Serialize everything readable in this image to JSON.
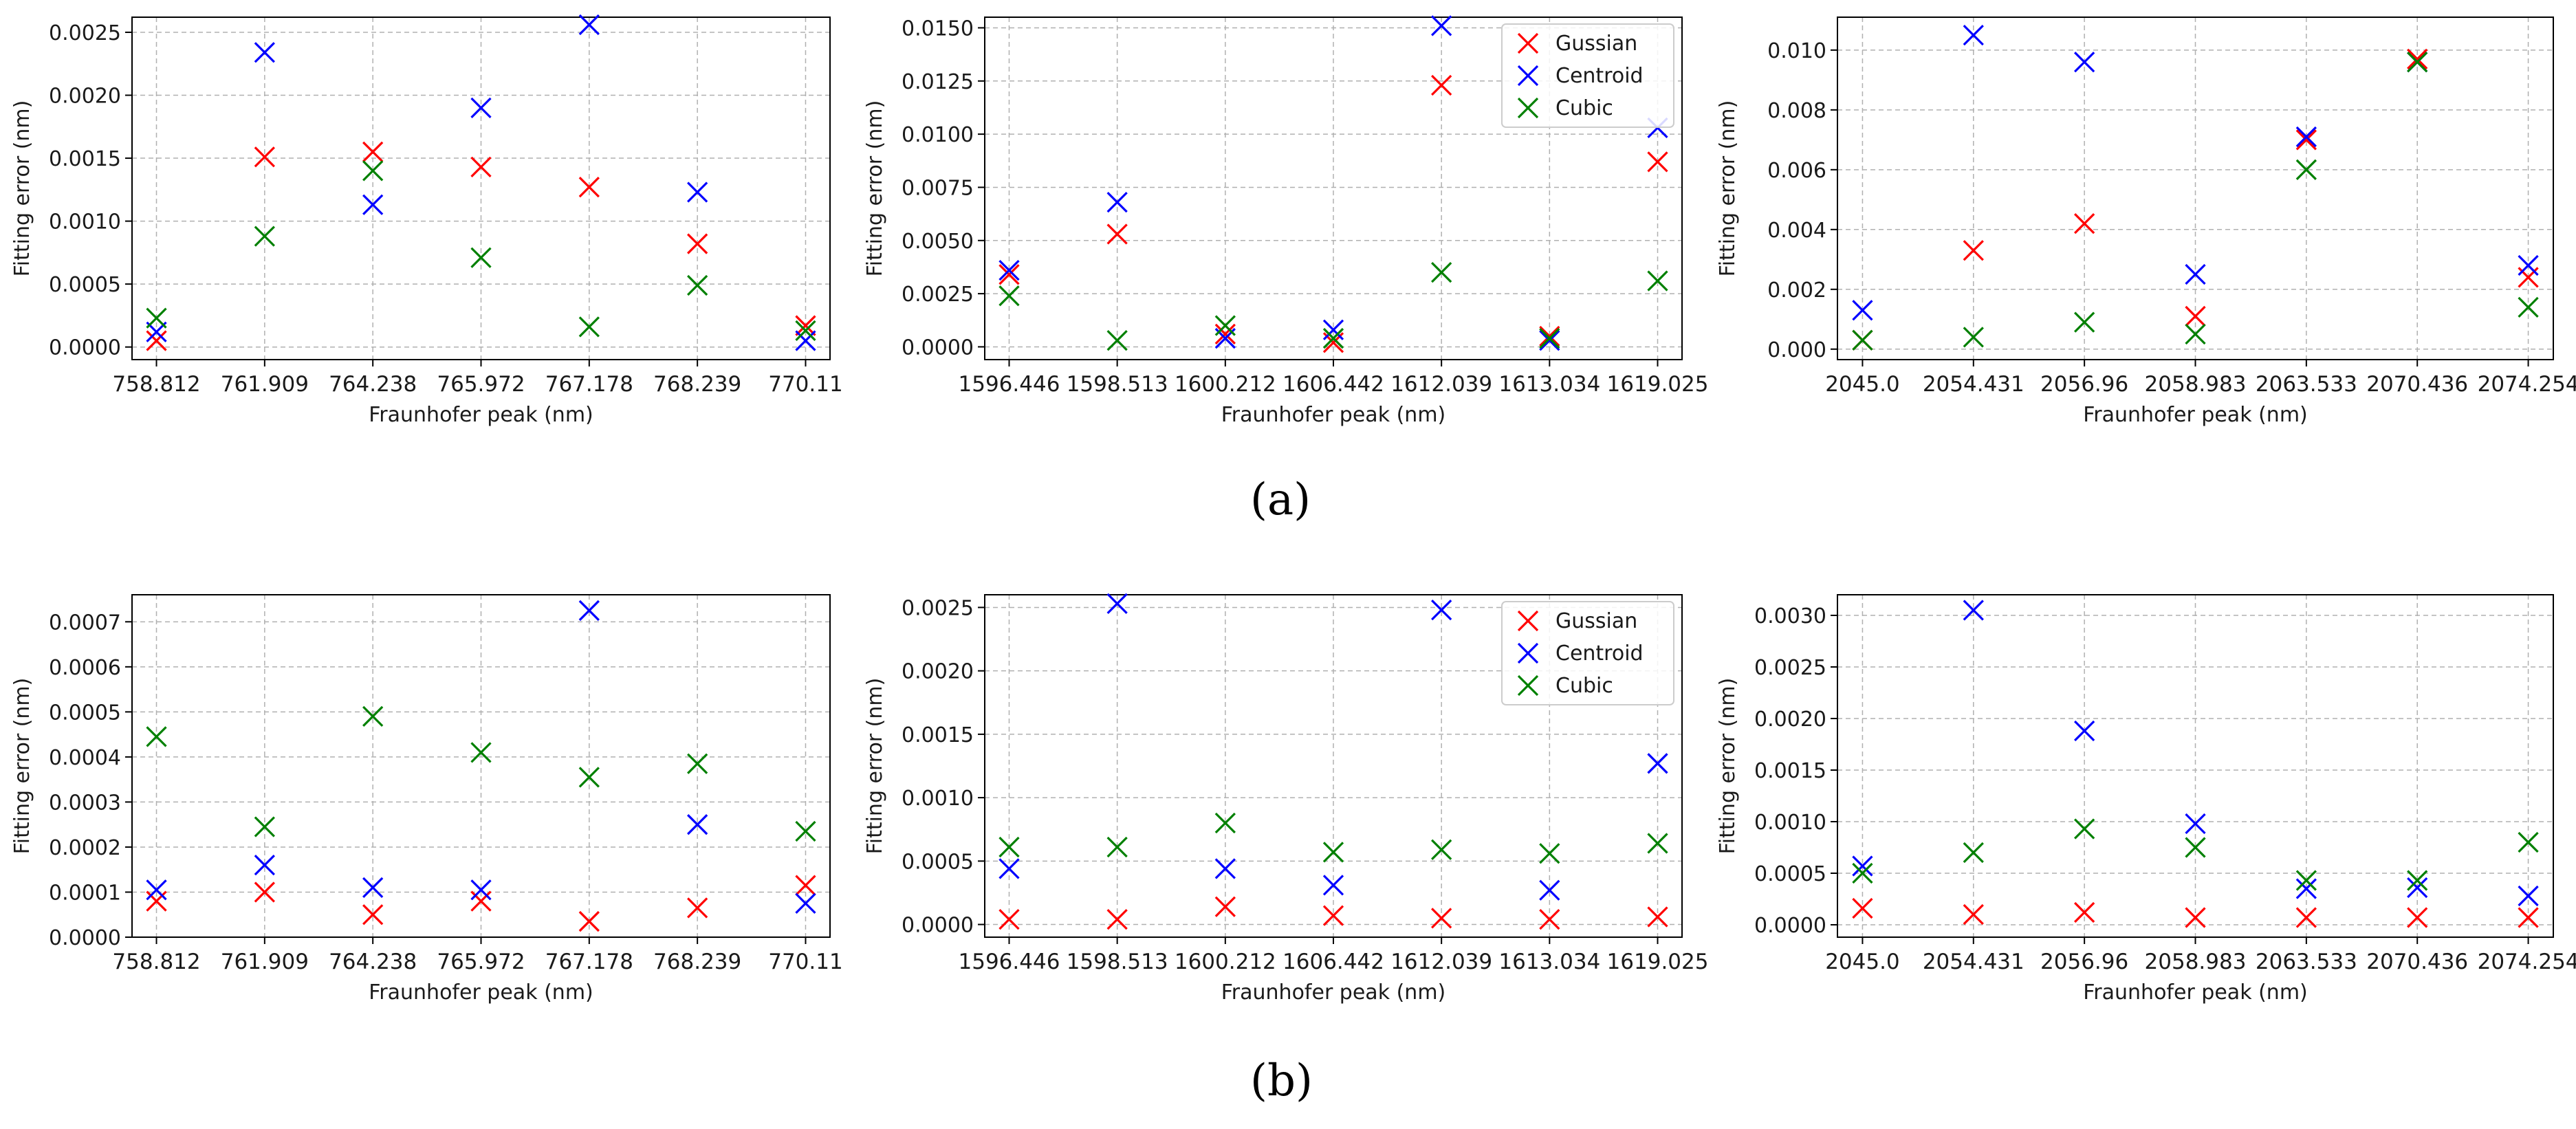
{
  "figure": {
    "panel_a_label": "(a)",
    "panel_b_label": "(b)"
  },
  "colors": {
    "Gussian": "#ff0000",
    "Centroid": "#0000ff",
    "Cubic": "#008000",
    "grid": "#b0b0b0"
  },
  "chart_data": [
    {
      "id": "a1",
      "type": "scatter",
      "title": "",
      "xlabel": "Fraunhofer peak (nm)",
      "ylabel": "Fitting error (nm)",
      "categories": [
        "758.812",
        "761.909",
        "764.238",
        "765.972",
        "767.178",
        "768.239",
        "770.11"
      ],
      "ylim": [
        -0.0001,
        0.00262
      ],
      "yticks": [
        0,
        0.0005,
        0.001,
        0.0015,
        0.002,
        0.0025
      ],
      "ytick_labels": [
        "0.0000",
        "0.0005",
        "0.0010",
        "0.0015",
        "0.0020",
        "0.0025"
      ],
      "legend": null,
      "series": [
        {
          "name": "Gussian",
          "values": [
            5e-05,
            0.00151,
            0.00155,
            0.00143,
            0.00127,
            0.00082,
            0.00017
          ]
        },
        {
          "name": "Centroid",
          "values": [
            0.00012,
            0.00234,
            0.00113,
            0.0019,
            0.00256,
            0.00123,
            5e-05
          ]
        },
        {
          "name": "Cubic",
          "values": [
            0.00023,
            0.00088,
            0.0014,
            0.00071,
            0.00016,
            0.00049,
            0.00013
          ]
        }
      ]
    },
    {
      "id": "a2",
      "type": "scatter",
      "title": "",
      "xlabel": "Fraunhofer peak (nm)",
      "ylabel": "Fitting error (nm)",
      "categories": [
        "1596.446",
        "1598.513",
        "1600.212",
        "1606.442",
        "1612.039",
        "1613.034",
        "1619.025"
      ],
      "ylim": [
        -0.0006,
        0.0155
      ],
      "yticks": [
        0,
        0.0025,
        0.005,
        0.0075,
        0.01,
        0.0125,
        0.015
      ],
      "ytick_labels": [
        "0.0000",
        "0.0025",
        "0.0050",
        "0.0075",
        "0.0100",
        "0.0125",
        "0.0150"
      ],
      "legend": "top-right",
      "series": [
        {
          "name": "Gussian",
          "values": [
            0.0034,
            0.0053,
            0.0006,
            0.0002,
            0.0123,
            0.0005,
            0.0087
          ]
        },
        {
          "name": "Centroid",
          "values": [
            0.0036,
            0.0068,
            0.0004,
            0.0008,
            0.0151,
            0.0003,
            0.0103
          ]
        },
        {
          "name": "Cubic",
          "values": [
            0.0024,
            0.0003,
            0.001,
            0.0004,
            0.0035,
            0.0004,
            0.0031
          ]
        }
      ]
    },
    {
      "id": "a3",
      "type": "scatter",
      "title": "",
      "xlabel": "Fraunhofer peak (nm)",
      "ylabel": "Fitting error (nm)",
      "categories": [
        "2045.0",
        "2054.431",
        "2056.96",
        "2058.983",
        "2063.533",
        "2070.436",
        "2074.254"
      ],
      "ylim": [
        -0.00035,
        0.0111
      ],
      "yticks": [
        0,
        0.002,
        0.004,
        0.006,
        0.008,
        0.01
      ],
      "ytick_labels": [
        "0.000",
        "0.002",
        "0.004",
        "0.006",
        "0.008",
        "0.010"
      ],
      "legend": null,
      "series": [
        {
          "name": "Gussian",
          "values": [
            0.0003,
            0.0033,
            0.0042,
            0.0011,
            0.007,
            0.0097,
            0.0024
          ]
        },
        {
          "name": "Centroid",
          "values": [
            0.0013,
            0.0105,
            0.0096,
            0.0025,
            0.0071,
            0.0096,
            0.0028
          ]
        },
        {
          "name": "Cubic",
          "values": [
            0.0003,
            0.0004,
            0.0009,
            0.0005,
            0.006,
            0.0096,
            0.0014
          ]
        }
      ]
    },
    {
      "id": "b1",
      "type": "scatter",
      "title": "",
      "xlabel": "Fraunhofer peak (nm)",
      "ylabel": "Fitting error (nm)",
      "categories": [
        "758.812",
        "761.909",
        "764.238",
        "765.972",
        "767.178",
        "768.239",
        "770.11"
      ],
      "ylim": [
        0,
        0.00076
      ],
      "yticks": [
        0,
        0.0001,
        0.0002,
        0.0003,
        0.0004,
        0.0005,
        0.0006,
        0.0007
      ],
      "ytick_labels": [
        "0.0000",
        "0.0001",
        "0.0002",
        "0.0003",
        "0.0004",
        "0.0005",
        "0.0006",
        "0.0007"
      ],
      "legend": null,
      "series": [
        {
          "name": "Gussian",
          "values": [
            8e-05,
            0.0001,
            5e-05,
            8e-05,
            3.5e-05,
            6.5e-05,
            0.000115
          ]
        },
        {
          "name": "Centroid",
          "values": [
            0.000105,
            0.00016,
            0.00011,
            0.000105,
            0.000725,
            0.00025,
            7.5e-05
          ]
        },
        {
          "name": "Cubic",
          "values": [
            0.000445,
            0.000245,
            0.00049,
            0.00041,
            0.000355,
            0.000385,
            0.000235
          ]
        }
      ]
    },
    {
      "id": "b2",
      "type": "scatter",
      "title": "",
      "xlabel": "Fraunhofer peak (nm)",
      "ylabel": "Fitting error (nm)",
      "categories": [
        "1596.446",
        "1598.513",
        "1600.212",
        "1606.442",
        "1612.039",
        "1613.034",
        "1619.025"
      ],
      "ylim": [
        -0.0001,
        0.0026
      ],
      "yticks": [
        0,
        0.0005,
        0.001,
        0.0015,
        0.002,
        0.0025
      ],
      "ytick_labels": [
        "0.0000",
        "0.0005",
        "0.0010",
        "0.0015",
        "0.0020",
        "0.0025"
      ],
      "legend": "top-right",
      "series": [
        {
          "name": "Gussian",
          "values": [
            4e-05,
            4e-05,
            0.00014,
            7e-05,
            5e-05,
            4e-05,
            6e-05
          ]
        },
        {
          "name": "Centroid",
          "values": [
            0.00044,
            0.00253,
            0.00044,
            0.00031,
            0.00248,
            0.00027,
            0.00127
          ]
        },
        {
          "name": "Cubic",
          "values": [
            0.00061,
            0.00061,
            0.0008,
            0.00057,
            0.00059,
            0.00056,
            0.00064
          ]
        }
      ]
    },
    {
      "id": "b3",
      "type": "scatter",
      "title": "",
      "xlabel": "Fraunhofer peak (nm)",
      "ylabel": "Fitting error (nm)",
      "categories": [
        "2045.0",
        "2054.431",
        "2056.96",
        "2058.983",
        "2063.533",
        "2070.436",
        "2074.254"
      ],
      "ylim": [
        -0.00012,
        0.0032
      ],
      "yticks": [
        0,
        0.0005,
        0.001,
        0.0015,
        0.002,
        0.0025,
        0.003
      ],
      "ytick_labels": [
        "0.0000",
        "0.0005",
        "0.0010",
        "0.0015",
        "0.0020",
        "0.0025",
        "0.0030"
      ],
      "legend": null,
      "series": [
        {
          "name": "Gussian",
          "values": [
            0.00016,
            0.0001,
            0.00012,
            7e-05,
            7e-05,
            7e-05,
            7e-05
          ]
        },
        {
          "name": "Centroid",
          "values": [
            0.00057,
            0.00305,
            0.00188,
            0.00098,
            0.00035,
            0.00036,
            0.00028
          ]
        },
        {
          "name": "Cubic",
          "values": [
            0.0005,
            0.0007,
            0.00093,
            0.00075,
            0.00043,
            0.00043,
            0.0008
          ]
        }
      ]
    }
  ]
}
